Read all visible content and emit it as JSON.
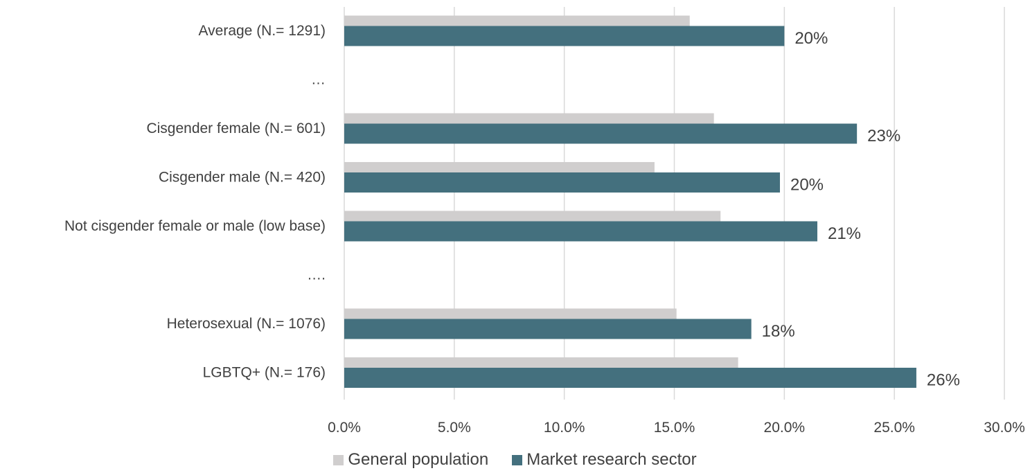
{
  "chart_data": {
    "type": "bar",
    "orientation": "horizontal",
    "title": "",
    "xlabel": "",
    "ylabel": "",
    "xlim": [
      0,
      30
    ],
    "x_ticks": [
      "0.0%",
      "5.0%",
      "10.0%",
      "15.0%",
      "20.0%",
      "25.0%",
      "30.0%"
    ],
    "grid": "vertical",
    "legend_position": "bottom",
    "categories": [
      "Average (N.= 1291)",
      "…",
      "Cisgender female (N.= 601)",
      "Cisgender male (N.= 420)",
      "Not cisgender female or male (low base)",
      "….",
      "Heterosexual (N.= 1076)",
      "LGBTQ+ (N.= 176)"
    ],
    "series": [
      {
        "name": "General population",
        "color": "#d0cece",
        "values": [
          15.7,
          null,
          16.8,
          14.1,
          17.1,
          null,
          15.1,
          17.9
        ]
      },
      {
        "name": "Market research sector",
        "color": "#44707e",
        "values": [
          20.0,
          null,
          23.3,
          19.8,
          21.5,
          null,
          18.5,
          26.0
        ],
        "data_labels": [
          "20%",
          "",
          "23%",
          "20%",
          "21%",
          "",
          "18%",
          "26%"
        ]
      }
    ]
  }
}
